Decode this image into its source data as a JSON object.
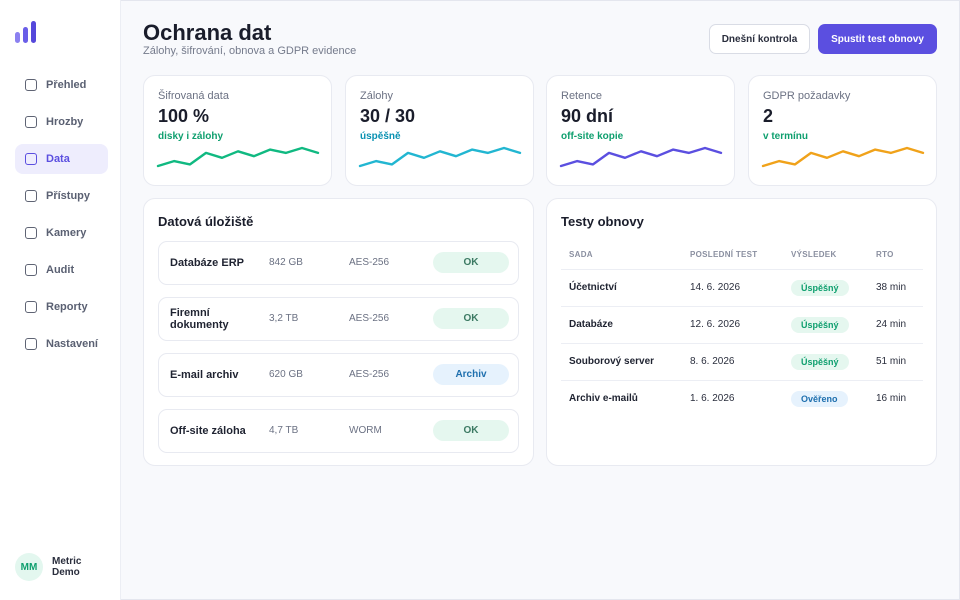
{
  "sidebar": {
    "items": [
      {
        "label": "Přehled",
        "icon": "square-icon"
      },
      {
        "label": "Hrozby",
        "icon": "square-icon"
      },
      {
        "label": "Data",
        "icon": "square-icon",
        "active": true
      },
      {
        "label": "Přístupy",
        "icon": "square-icon"
      },
      {
        "label": "Kamery",
        "icon": "square-icon"
      },
      {
        "label": "Audit",
        "icon": "square-icon"
      },
      {
        "label": "Reporty",
        "icon": "square-icon"
      },
      {
        "label": "Nastavení",
        "icon": "square-icon"
      }
    ],
    "user": {
      "initials": "MM",
      "name": "Metric Demo"
    }
  },
  "header": {
    "title": "Ochrana dat",
    "subtitle": "Zálohy, šifrování, obnova a GDPR evidence",
    "secondary_button": "Dnešní kontrola",
    "primary_button": "Spustit test obnovy"
  },
  "kpis": [
    {
      "label": "Šifrovaná data",
      "value": "100 %",
      "sub": "disky i zálohy",
      "sub_color": "#0e9f6e",
      "line_color": "#10b981",
      "trend": [
        3,
        6,
        4,
        11,
        8,
        12,
        9,
        13,
        11,
        14,
        11
      ]
    },
    {
      "label": "Zálohy",
      "value": "30 / 30",
      "sub": "úspěšně",
      "sub_color": "#0891b2",
      "line_color": "#22b6d1",
      "trend": [
        3,
        6,
        4,
        11,
        8,
        12,
        9,
        13,
        11,
        14,
        11
      ]
    },
    {
      "label": "Retence",
      "value": "90 dní",
      "sub": "off-site kopie",
      "sub_color": "#0e9f6e",
      "line_color": "#5b4fe0",
      "trend": [
        3,
        6,
        4,
        11,
        8,
        12,
        9,
        13,
        11,
        14,
        11
      ]
    },
    {
      "label": "GDPR požadavky",
      "value": "2",
      "sub": "v termínu",
      "sub_color": "#0e9f6e",
      "line_color": "#f0a21a",
      "trend": [
        3,
        6,
        4,
        11,
        8,
        12,
        9,
        13,
        11,
        14,
        11
      ]
    }
  ],
  "storage": {
    "title": "Datová úložiště",
    "rows": [
      {
        "name": "Databáze ERP",
        "size": "842 GB",
        "encryption": "AES-256",
        "status": "OK"
      },
      {
        "name": "Firemní dokumenty",
        "size": "3,2 TB",
        "encryption": "AES-256",
        "status": "OK"
      },
      {
        "name": "E-mail archiv",
        "size": "620 GB",
        "encryption": "AES-256",
        "status": "Archiv"
      },
      {
        "name": "Off-site záloha",
        "size": "4,7 TB",
        "encryption": "WORM",
        "status": "OK"
      }
    ]
  },
  "tests": {
    "title": "Testy obnovy",
    "columns": [
      "SADA",
      "POSLEDNÍ TEST",
      "VÝSLEDEK",
      "RTO"
    ],
    "rows": [
      {
        "set": "Účetnictví",
        "date": "14. 6. 2026",
        "result": "Úspěšný",
        "rto": "38 min"
      },
      {
        "set": "Databáze",
        "date": "12. 6. 2026",
        "result": "Úspěšný",
        "rto": "24 min"
      },
      {
        "set": "Souborový server",
        "date": "8. 6. 2026",
        "result": "Úspěšný",
        "rto": "51 min"
      },
      {
        "set": "Archiv e-mailů",
        "date": "1. 6. 2026",
        "result": "Ověřeno",
        "rto": "16 min"
      }
    ]
  }
}
